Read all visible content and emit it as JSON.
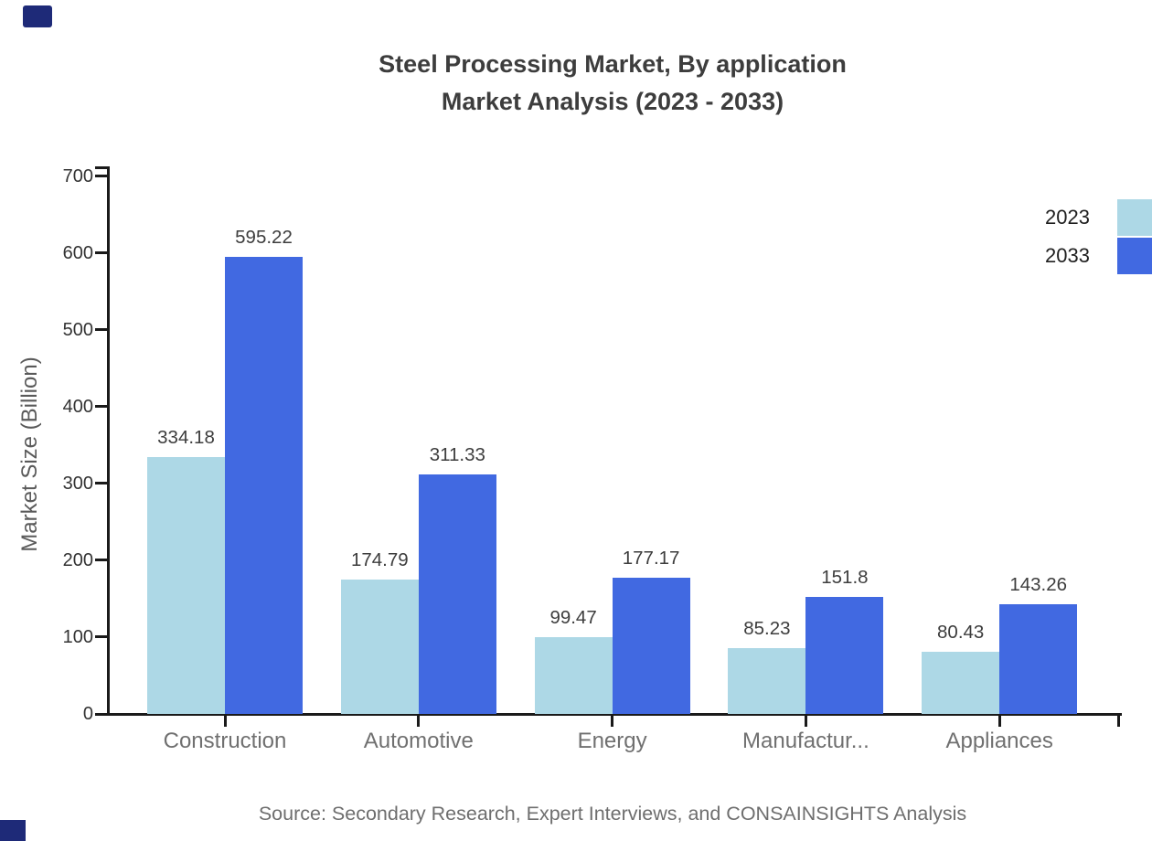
{
  "title": {
    "line1": "Steel Processing Market, By application",
    "line2": "Market Analysis (2023 - 2033)"
  },
  "source_note": "Source: Secondary Research, Expert Interviews, and CONSAINSIGHTS Analysis",
  "legend": {
    "items": [
      {
        "label": "2023",
        "color": "#add8e6"
      },
      {
        "label": "2033",
        "color": "#4169e1"
      }
    ]
  },
  "colors": {
    "series_2023": "#add8e6",
    "series_2033": "#4169e1",
    "axis": "#1a1a1a",
    "title_text": "#3d3d3d",
    "category_label": "#707070",
    "y_tick_label": "#333333",
    "value_label": "#3d3d3d",
    "axis_title": "#5a5a5a",
    "source_text": "#6e6e6e",
    "corner_accent": "#1e2a78",
    "background": "#ffffff"
  },
  "chart_data": {
    "type": "bar",
    "title": "Steel Processing Market, By application Market Analysis (2023 - 2033)",
    "categories": [
      "Construction",
      "Automotive",
      "Energy",
      "Manufactur...",
      "Appliances"
    ],
    "series": [
      {
        "name": "2023",
        "color_key": "series_2023",
        "values": [
          334.18,
          174.79,
          99.47,
          85.23,
          80.43
        ]
      },
      {
        "name": "2033",
        "color_key": "series_2033",
        "values": [
          595.22,
          311.33,
          177.17,
          151.8,
          143.26
        ]
      }
    ],
    "value_label_texts": [
      [
        "334.18",
        "174.79",
        "99.47",
        "85.23",
        "80.43"
      ],
      [
        "595.22",
        "311.33",
        "177.17",
        "151.8",
        "143.26"
      ]
    ],
    "xlabel": "",
    "ylabel": "Market Size (Billion)",
    "ylim": [
      0,
      700
    ],
    "ytick_step": 100,
    "ytick_labels": [
      "0",
      "100",
      "200",
      "300",
      "400",
      "500",
      "600",
      "700"
    ],
    "grid": false,
    "legend_position": "top-right",
    "value_labels": true
  }
}
